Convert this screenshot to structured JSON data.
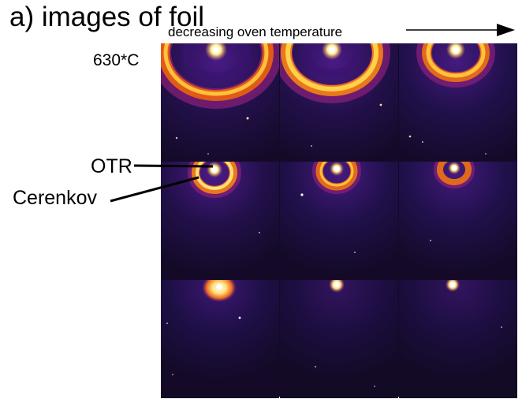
{
  "figure": {
    "title": "a) images of foil",
    "arrow_caption": "decreasing oven temperature",
    "temperature_label": "630*C",
    "pointer_labels": {
      "otr": "OTR",
      "cerenkov": "Cerenkov"
    }
  },
  "image_grid": {
    "rows": 3,
    "columns": 3,
    "colormap": [
      "#14082a",
      "#3a1370",
      "#8c1f7a",
      "#d9461f",
      "#f6a52a",
      "#fff4b0"
    ],
    "frames": [
      {
        "row": 1,
        "col": 1,
        "content": "bright spot with large outer ring"
      },
      {
        "row": 1,
        "col": 2,
        "content": "bright spot with large outer ring"
      },
      {
        "row": 1,
        "col": 3,
        "content": "bright spot with medium ring"
      },
      {
        "row": 2,
        "col": 1,
        "content": "bright spot with small ring"
      },
      {
        "row": 2,
        "col": 2,
        "content": "bright spot with small ring"
      },
      {
        "row": 2,
        "col": 3,
        "content": "bright spot with small ring"
      },
      {
        "row": 3,
        "col": 1,
        "content": "spot with faint glow"
      },
      {
        "row": 3,
        "col": 2,
        "content": "small spot"
      },
      {
        "row": 3,
        "col": 3,
        "content": "small spot"
      }
    ]
  }
}
